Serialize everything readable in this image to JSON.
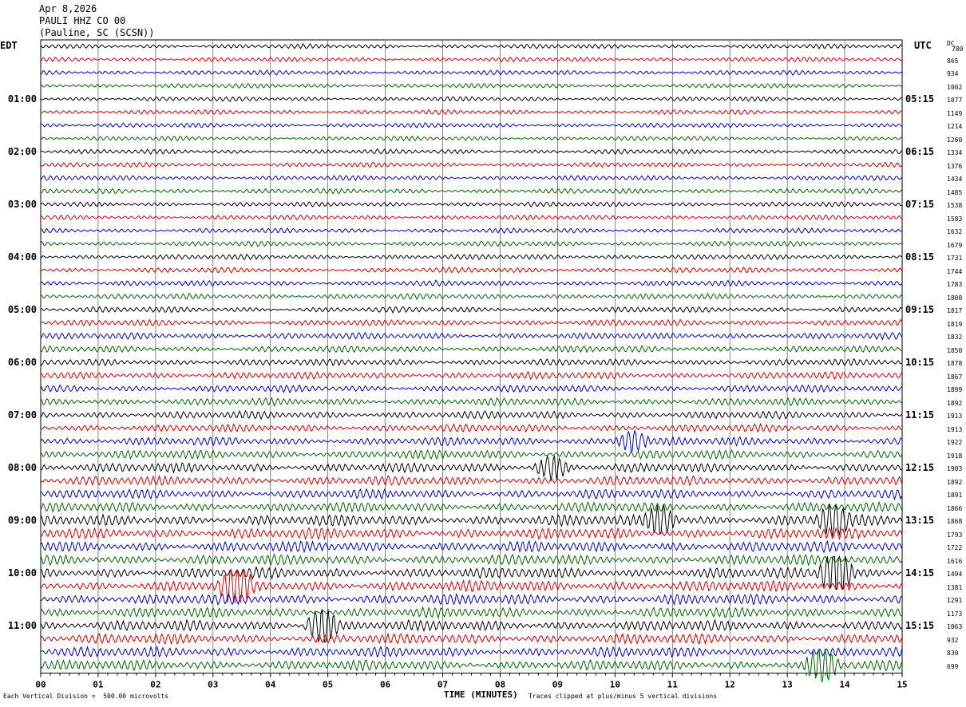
{
  "header": {
    "date": "Apr 8,2026",
    "station": "PAULI HHZ CO 00",
    "location": "(Pauline, SC (SCSN))"
  },
  "left_tz": "EDT",
  "right_tz": "UTC",
  "dc_header": "DC",
  "footer": {
    "scale_note": "Each Vertical Division =  500.00 microvolts",
    "clip_note": "Traces clipped at plus/minus 5 vertical divisions"
  },
  "colors": {
    "trace_cycle": [
      "#000000",
      "#dd0000",
      "#0000cc",
      "#006600"
    ],
    "grid": "#000000"
  },
  "chart_data": {
    "type": "line",
    "title": "",
    "xlabel": "TIME (MINUTES)",
    "xlim": [
      0,
      15
    ],
    "x_ticks": [
      "00",
      "01",
      "02",
      "03",
      "04",
      "05",
      "06",
      "07",
      "08",
      "09",
      "10",
      "11",
      "12",
      "13",
      "14",
      "15"
    ],
    "rows": 48,
    "minutes_per_row": 15,
    "left_hour_labels": [
      {
        "row": 4,
        "text": "01:00"
      },
      {
        "row": 8,
        "text": "02:00"
      },
      {
        "row": 12,
        "text": "03:00"
      },
      {
        "row": 16,
        "text": "04:00"
      },
      {
        "row": 20,
        "text": "05:00"
      },
      {
        "row": 24,
        "text": "06:00"
      },
      {
        "row": 28,
        "text": "07:00"
      },
      {
        "row": 32,
        "text": "08:00"
      },
      {
        "row": 36,
        "text": "09:00"
      },
      {
        "row": 40,
        "text": "10:00"
      },
      {
        "row": 44,
        "text": "11:00"
      }
    ],
    "right_hour_labels": [
      {
        "row": 4,
        "text": "05:15"
      },
      {
        "row": 8,
        "text": "06:15"
      },
      {
        "row": 12,
        "text": "07:15"
      },
      {
        "row": 16,
        "text": "08:15"
      },
      {
        "row": 20,
        "text": "09:15"
      },
      {
        "row": 24,
        "text": "10:15"
      },
      {
        "row": 28,
        "text": "11:15"
      },
      {
        "row": 32,
        "text": "12:15"
      },
      {
        "row": 36,
        "text": "13:15"
      },
      {
        "row": 40,
        "text": "14:15"
      },
      {
        "row": 44,
        "text": "15:15"
      }
    ],
    "dc_offsets": [
      780,
      865,
      934,
      1002,
      1077,
      1149,
      1214,
      1260,
      1334,
      1376,
      1434,
      1485,
      1538,
      1583,
      1632,
      1679,
      1731,
      1744,
      1783,
      1808,
      1817,
      1819,
      1832,
      1850,
      1878,
      1867,
      1899,
      1892,
      1913,
      1913,
      1922,
      1918,
      1903,
      1892,
      1891,
      1866,
      1868,
      1793,
      1722,
      1616,
      1494,
      1381,
      1291,
      1173,
      1063,
      932,
      830,
      699
    ],
    "amplitude_levels": [
      0.35,
      0.35,
      0.35,
      0.35,
      0.35,
      0.35,
      0.35,
      0.35,
      0.37,
      0.37,
      0.37,
      0.4,
      0.37,
      0.37,
      0.38,
      0.4,
      0.4,
      0.42,
      0.42,
      0.42,
      0.45,
      0.48,
      0.5,
      0.5,
      0.52,
      0.55,
      0.55,
      0.58,
      0.6,
      0.6,
      0.65,
      0.7,
      0.72,
      0.72,
      0.72,
      0.75,
      0.85,
      0.85,
      0.82,
      0.8,
      0.85,
      0.85,
      0.82,
      0.8,
      0.82,
      0.8,
      0.8,
      0.78
    ],
    "events": [
      {
        "row": 30,
        "minute": 10.3,
        "amp": 1.4
      },
      {
        "row": 32,
        "minute": 8.9,
        "amp": 1.4
      },
      {
        "row": 36,
        "minute": 10.8,
        "amp": 1.5
      },
      {
        "row": 36,
        "minute": 13.8,
        "amp": 1.6
      },
      {
        "row": 40,
        "minute": 13.85,
        "amp": 3.0
      },
      {
        "row": 41,
        "minute": 3.4,
        "amp": 2.0
      },
      {
        "row": 44,
        "minute": 4.9,
        "amp": 2.0
      },
      {
        "row": 47,
        "minute": 13.6,
        "amp": 1.8
      }
    ]
  }
}
